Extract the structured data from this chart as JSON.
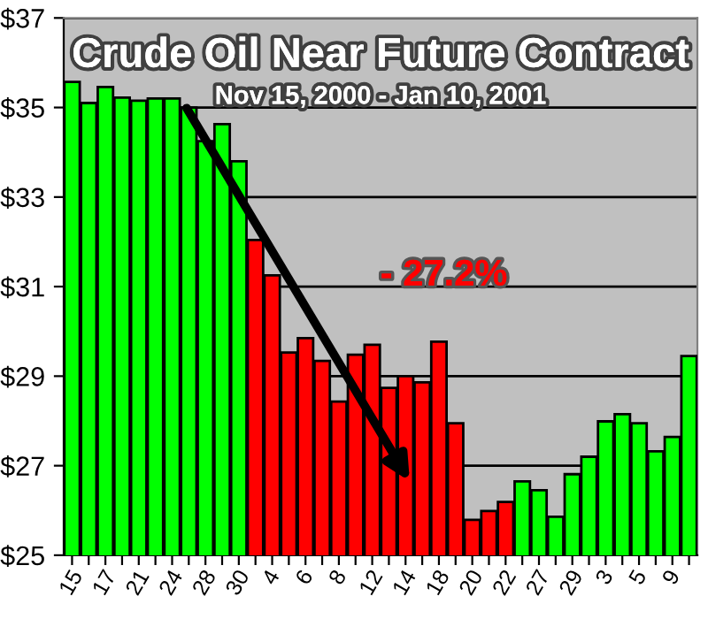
{
  "chart_data": {
    "type": "bar",
    "title": "Crude Oil Near Future Contract",
    "subtitle": "Nov 15, 2000 - Jan 10, 2001",
    "categories": [
      "15",
      null,
      "17",
      null,
      "21",
      null,
      "24",
      null,
      "28",
      null,
      "30",
      null,
      "4",
      null,
      "6",
      null,
      "8",
      null,
      "12",
      null,
      "14",
      null,
      "18",
      null,
      "20",
      null,
      "22",
      null,
      "27",
      null,
      "29",
      null,
      "3",
      null,
      "5",
      null,
      "9",
      null
    ],
    "values": [
      35.57,
      35.1,
      35.46,
      35.22,
      35.15,
      35.2,
      35.2,
      35.0,
      34.25,
      34.63,
      33.8,
      32.04,
      31.25,
      29.53,
      29.85,
      29.34,
      28.43,
      29.48,
      29.7,
      28.74,
      29.0,
      28.86,
      29.77,
      27.95,
      25.79,
      25.99,
      26.19,
      26.65,
      26.45,
      25.86,
      26.81,
      27.2,
      27.99,
      28.15,
      27.95,
      27.32,
      27.64,
      29.45
    ],
    "colors": [
      "#00ff00",
      "#00ff00",
      "#00ff00",
      "#00ff00",
      "#00ff00",
      "#00ff00",
      "#00ff00",
      "#00ff00",
      "#00ff00",
      "#00ff00",
      "#00ff00",
      "#ff0000",
      "#ff0000",
      "#ff0000",
      "#ff0000",
      "#ff0000",
      "#ff0000",
      "#ff0000",
      "#ff0000",
      "#ff0000",
      "#ff0000",
      "#ff0000",
      "#ff0000",
      "#ff0000",
      "#ff0000",
      "#ff0000",
      "#ff0000",
      "#00ff00",
      "#00ff00",
      "#00ff00",
      "#00ff00",
      "#00ff00",
      "#00ff00",
      "#00ff00",
      "#00ff00",
      "#00ff00",
      "#00ff00",
      "#00ff00"
    ],
    "ylim": [
      25,
      37
    ],
    "yticks": [
      {
        "value": 25,
        "label": "$25"
      },
      {
        "value": 27,
        "label": "$27"
      },
      {
        "value": 29,
        "label": "$29"
      },
      {
        "value": 31,
        "label": "$31"
      },
      {
        "value": 33,
        "label": "$33"
      },
      {
        "value": 35,
        "label": "$35"
      },
      {
        "value": 37,
        "label": "$37"
      }
    ],
    "grid": "y",
    "annotations": [
      "- 27.2%"
    ]
  }
}
